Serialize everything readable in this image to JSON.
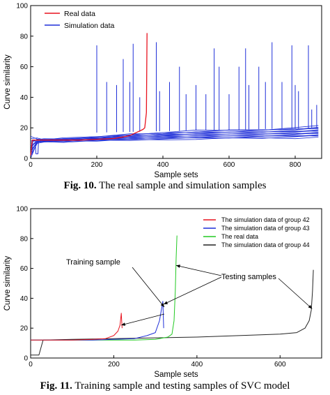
{
  "chart_data": [
    {
      "type": "line",
      "caption_prefix": "Fig. 10.",
      "caption_text": " The real sample and simulation samples",
      "xlabel": "Sample sets",
      "ylabel": "Curve similarity",
      "xlim": [
        0,
        880
      ],
      "ylim": [
        0,
        100
      ],
      "xticks": [
        "0",
        "200",
        "400",
        "600",
        "800"
      ],
      "xtick_values": [
        0,
        200,
        400,
        600,
        800
      ],
      "yticks": [
        "0",
        "20",
        "40",
        "60",
        "80",
        "100"
      ],
      "ytick_values": [
        0,
        20,
        40,
        60,
        80,
        100
      ],
      "legend": {
        "position": "top-left"
      },
      "colors": {
        "real": "#e8121e",
        "simulation": "#1f2fd8"
      },
      "series": [
        {
          "name": "Real data",
          "color": "#e8121e",
          "x": [
            0,
            5,
            10,
            20,
            40,
            80,
            150,
            200,
            250,
            280,
            300,
            320,
            330,
            340,
            345,
            350,
            352
          ],
          "y": [
            2,
            12,
            12,
            12,
            12,
            12,
            12,
            12.5,
            13,
            14,
            15,
            17,
            18,
            19,
            20,
            30,
            82
          ]
        },
        {
          "name": "Simulation data",
          "color": "#1f2fd8",
          "spikes": [
            {
              "x": 200,
              "y": 74
            },
            {
              "x": 230,
              "y": 50
            },
            {
              "x": 260,
              "y": 48
            },
            {
              "x": 280,
              "y": 65
            },
            {
              "x": 300,
              "y": 50
            },
            {
              "x": 310,
              "y": 75
            },
            {
              "x": 330,
              "y": 40
            },
            {
              "x": 380,
              "y": 76
            },
            {
              "x": 390,
              "y": 44
            },
            {
              "x": 420,
              "y": 50
            },
            {
              "x": 450,
              "y": 60
            },
            {
              "x": 470,
              "y": 42
            },
            {
              "x": 500,
              "y": 48
            },
            {
              "x": 530,
              "y": 42
            },
            {
              "x": 555,
              "y": 72
            },
            {
              "x": 570,
              "y": 60
            },
            {
              "x": 600,
              "y": 42
            },
            {
              "x": 630,
              "y": 60
            },
            {
              "x": 650,
              "y": 72
            },
            {
              "x": 660,
              "y": 48
            },
            {
              "x": 690,
              "y": 60
            },
            {
              "x": 710,
              "y": 50
            },
            {
              "x": 730,
              "y": 76
            },
            {
              "x": 760,
              "y": 50
            },
            {
              "x": 790,
              "y": 74
            },
            {
              "x": 800,
              "y": 48
            },
            {
              "x": 810,
              "y": 44
            },
            {
              "x": 840,
              "y": 74
            },
            {
              "x": 850,
              "y": 32
            },
            {
              "x": 865,
              "y": 35
            }
          ],
          "band_x": [
            0,
            20,
            40,
            100,
            200,
            300,
            400,
            500,
            600,
            700,
            800,
            870
          ],
          "band_low": [
            0,
            10,
            11,
            11,
            11.5,
            12,
            12.5,
            12.8,
            13,
            13.3,
            13.5,
            14
          ],
          "band_high": [
            14,
            13,
            12.5,
            13,
            14,
            16,
            17,
            18,
            18.5,
            19,
            20,
            21
          ]
        }
      ]
    },
    {
      "type": "line",
      "caption_prefix": "Fig. 11.",
      "caption_text": " Training sample and testing samples of SVC model",
      "xlabel": "Sample sets",
      "ylabel": "Curve similarity",
      "xlim": [
        0,
        700
      ],
      "ylim": [
        0,
        100
      ],
      "xticks": [
        "0",
        "200",
        "400",
        "600"
      ],
      "xtick_values": [
        0,
        200,
        400,
        600
      ],
      "yticks": [
        "0",
        "20",
        "40",
        "60",
        "80",
        "100"
      ],
      "ytick_values": [
        0,
        20,
        40,
        60,
        80,
        100
      ],
      "legend": {
        "position": "top-right"
      },
      "annotations": [
        {
          "text": "Training sample",
          "target": "group-42-end"
        },
        {
          "text": "Testing samples",
          "target": "group-43-real-44-ends"
        }
      ],
      "series": [
        {
          "name": "The simulation data of group 42",
          "color": "#e8121e",
          "x": [
            0,
            10,
            50,
            100,
            150,
            180,
            200,
            210,
            215,
            218,
            220
          ],
          "y": [
            12,
            12,
            12,
            12,
            12.5,
            13,
            15,
            18,
            22,
            30,
            20
          ]
        },
        {
          "name": "The simulation data of group 43",
          "color": "#1f2fd8",
          "x": [
            0,
            10,
            50,
            100,
            150,
            200,
            250,
            280,
            300,
            310,
            318,
            320
          ],
          "y": [
            12,
            12,
            12,
            12,
            12,
            12.5,
            13,
            15,
            17,
            25,
            38,
            20
          ]
        },
        {
          "name": "The real data",
          "color": "#22c922",
          "x": [
            0,
            10,
            50,
            100,
            150,
            200,
            250,
            300,
            330,
            340,
            345,
            348,
            350,
            352
          ],
          "y": [
            12,
            12,
            12,
            12,
            12,
            12,
            12,
            12.5,
            14,
            16,
            25,
            45,
            67,
            82
          ]
        },
        {
          "name": "The simulation data of group 44",
          "color": "#222222",
          "x": [
            0,
            20,
            25,
            30,
            100,
            200,
            300,
            400,
            500,
            600,
            640,
            660,
            670,
            675,
            678,
            680
          ],
          "y": [
            2,
            2,
            7,
            12,
            12.5,
            13,
            13.5,
            14,
            15,
            16,
            17,
            20,
            25,
            32,
            45,
            59
          ]
        }
      ]
    }
  ]
}
